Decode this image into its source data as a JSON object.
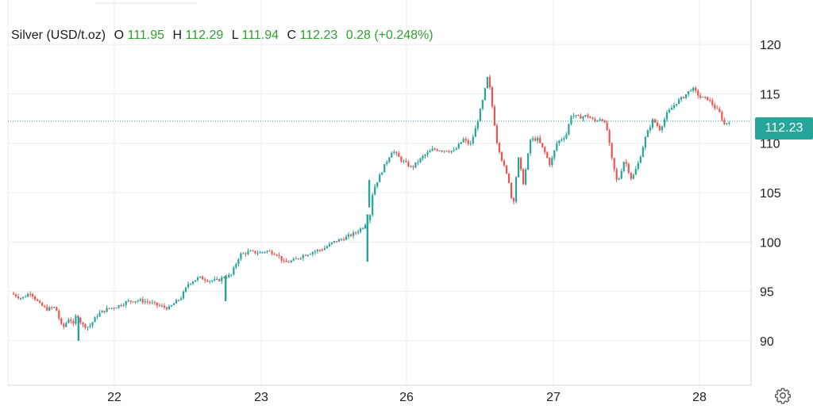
{
  "legend": {
    "symbol": "Silver (USD/t.oz)",
    "open_label": "O",
    "open": "111.95",
    "high_label": "H",
    "high": "112.29",
    "low_label": "L",
    "low": "111.94",
    "close_label": "C",
    "close": "112.23",
    "change": "0.28",
    "change_pct": "(+0.248%)"
  },
  "last_price": "112.23",
  "colors": {
    "up": "#26a69a",
    "down": "#ef5350",
    "value_text": "#2e9e2e",
    "grid": "#ececec"
  },
  "icons": {
    "settings": "gear-icon"
  },
  "chart_data": {
    "type": "candlestick",
    "y_ticks": [
      90,
      95,
      100,
      105,
      110,
      115,
      120
    ],
    "y_tick_labels": [
      "90",
      "95",
      "100",
      "105",
      "110",
      "115",
      "120"
    ],
    "ylim": [
      85.5,
      124.5
    ],
    "x_ticks": [
      "22",
      "23",
      "26",
      "27",
      "28"
    ],
    "last_value": 112.23,
    "grid": true,
    "series": [
      {
        "x": 0.0,
        "value": 94.8
      },
      {
        "x": 0.3,
        "value": 94.3
      },
      {
        "x": 0.55,
        "value": 94.9
      },
      {
        "x": 0.8,
        "value": 93.7
      },
      {
        "x": 1.0,
        "value": 93.2
      },
      {
        "x": 1.25,
        "value": 93.4
      },
      {
        "x": 1.45,
        "value": 91.2
      },
      {
        "x": 1.65,
        "value": 92.4
      },
      {
        "x": 1.75,
        "value": 91.5
      },
      {
        "x": 1.85,
        "value": 92.8
      },
      {
        "x": 2.0,
        "value": 91.6
      },
      {
        "x": 2.2,
        "value": 91.4
      },
      {
        "x": 2.45,
        "value": 92.7
      },
      {
        "x": 2.7,
        "value": 93.2
      },
      {
        "x": 3.0,
        "value": 93.5
      },
      {
        "x": 3.3,
        "value": 94.0
      },
      {
        "x": 3.6,
        "value": 94.1
      },
      {
        "x": 3.9,
        "value": 93.9
      },
      {
        "x": 4.2,
        "value": 93.5
      },
      {
        "x": 4.45,
        "value": 93.3
      },
      {
        "x": 4.6,
        "value": 93.8
      },
      {
        "x": 4.8,
        "value": 94.4
      },
      {
        "x": 5.0,
        "value": 95.8
      },
      {
        "x": 5.3,
        "value": 96.4
      },
      {
        "x": 5.6,
        "value": 96.1
      },
      {
        "x": 5.85,
        "value": 96.1
      },
      {
        "x": 6.0,
        "value": 96.5
      },
      {
        "x": 6.2,
        "value": 96.6
      },
      {
        "x": 6.45,
        "value": 98.7
      },
      {
        "x": 6.7,
        "value": 99.0
      },
      {
        "x": 7.0,
        "value": 98.9
      },
      {
        "x": 7.2,
        "value": 99.1
      },
      {
        "x": 7.5,
        "value": 98.8
      },
      {
        "x": 7.7,
        "value": 97.9
      },
      {
        "x": 7.95,
        "value": 98.1
      },
      {
        "x": 8.2,
        "value": 98.6
      },
      {
        "x": 8.5,
        "value": 99.0
      },
      {
        "x": 8.8,
        "value": 99.3
      },
      {
        "x": 9.1,
        "value": 100.0
      },
      {
        "x": 9.4,
        "value": 100.4
      },
      {
        "x": 9.7,
        "value": 100.9
      },
      {
        "x": 9.95,
        "value": 101.6
      },
      {
        "x": 10.15,
        "value": 103.0
      },
      {
        "x": 10.2,
        "value": 105.2
      },
      {
        "x": 10.5,
        "value": 107.5
      },
      {
        "x": 10.75,
        "value": 109.3
      },
      {
        "x": 11.0,
        "value": 108.3
      },
      {
        "x": 11.3,
        "value": 107.5
      },
      {
        "x": 11.6,
        "value": 108.6
      },
      {
        "x": 11.9,
        "value": 109.4
      },
      {
        "x": 12.2,
        "value": 109.3
      },
      {
        "x": 12.5,
        "value": 109.2
      },
      {
        "x": 12.75,
        "value": 110.4
      },
      {
        "x": 12.95,
        "value": 109.8
      },
      {
        "x": 13.1,
        "value": 111.5
      },
      {
        "x": 13.3,
        "value": 114.3
      },
      {
        "x": 13.45,
        "value": 116.9
      },
      {
        "x": 13.55,
        "value": 114.2
      },
      {
        "x": 13.7,
        "value": 110.2
      },
      {
        "x": 13.85,
        "value": 108.2
      },
      {
        "x": 14.05,
        "value": 106.0
      },
      {
        "x": 14.15,
        "value": 103.4
      },
      {
        "x": 14.3,
        "value": 108.6
      },
      {
        "x": 14.45,
        "value": 105.9
      },
      {
        "x": 14.65,
        "value": 110.4
      },
      {
        "x": 14.85,
        "value": 110.4
      },
      {
        "x": 15.05,
        "value": 109.1
      },
      {
        "x": 15.2,
        "value": 107.8
      },
      {
        "x": 15.4,
        "value": 110.1
      },
      {
        "x": 15.65,
        "value": 110.8
      },
      {
        "x": 15.8,
        "value": 112.9
      },
      {
        "x": 16.0,
        "value": 112.6
      },
      {
        "x": 16.25,
        "value": 112.8
      },
      {
        "x": 16.45,
        "value": 112.2
      },
      {
        "x": 16.65,
        "value": 112.6
      },
      {
        "x": 16.8,
        "value": 111.5
      },
      {
        "x": 16.95,
        "value": 108.2
      },
      {
        "x": 17.1,
        "value": 105.9
      },
      {
        "x": 17.3,
        "value": 108.4
      },
      {
        "x": 17.5,
        "value": 106.3
      },
      {
        "x": 17.7,
        "value": 108.1
      },
      {
        "x": 17.9,
        "value": 110.7
      },
      {
        "x": 18.1,
        "value": 112.4
      },
      {
        "x": 18.3,
        "value": 111.4
      },
      {
        "x": 18.5,
        "value": 113.0
      },
      {
        "x": 18.75,
        "value": 114.1
      },
      {
        "x": 19.0,
        "value": 114.8
      },
      {
        "x": 19.2,
        "value": 115.6
      },
      {
        "x": 19.45,
        "value": 114.6
      },
      {
        "x": 19.65,
        "value": 114.5
      },
      {
        "x": 19.85,
        "value": 113.6
      },
      {
        "x": 20.0,
        "value": 113.0
      },
      {
        "x": 20.1,
        "value": 111.9
      },
      {
        "x": 20.25,
        "value": 112.23
      }
    ]
  }
}
